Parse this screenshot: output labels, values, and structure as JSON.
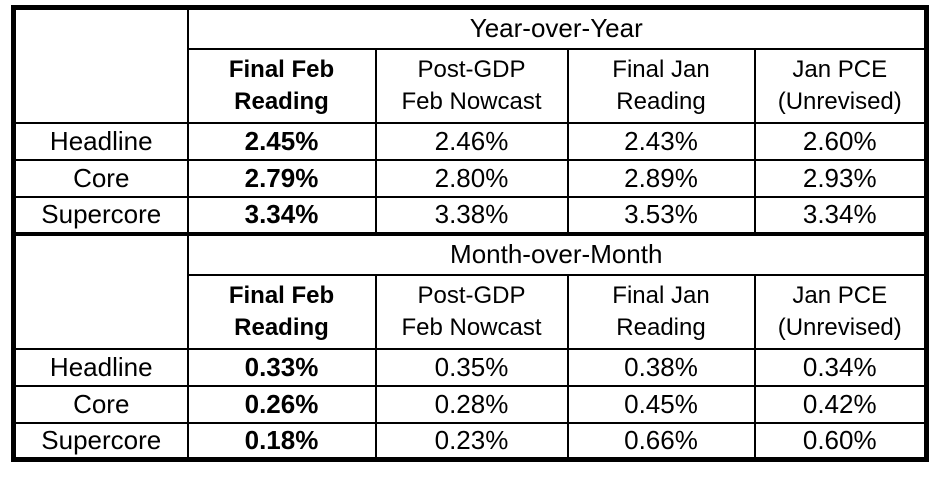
{
  "chart_data": {
    "type": "table",
    "row_dimension_labels": [
      "Headline",
      "Core",
      "Supercore"
    ],
    "sections": [
      {
        "title": "Year-over-Year",
        "columns": [
          {
            "line1": "Final Feb",
            "line2": "Reading",
            "bold": true
          },
          {
            "line1": "Post-GDP",
            "line2": "Feb Nowcast",
            "bold": false
          },
          {
            "line1": "Final Jan",
            "line2": "Reading",
            "bold": false
          },
          {
            "line1": "Jan PCE",
            "line2": "(Unrevised)",
            "bold": false
          }
        ],
        "rows": [
          {
            "label": "Headline",
            "values": [
              "2.45%",
              "2.46%",
              "2.43%",
              "2.60%"
            ]
          },
          {
            "label": "Core",
            "values": [
              "2.79%",
              "2.80%",
              "2.89%",
              "2.93%"
            ]
          },
          {
            "label": "Supercore",
            "values": [
              "3.34%",
              "3.38%",
              "3.53%",
              "3.34%"
            ]
          }
        ]
      },
      {
        "title": "Month-over-Month",
        "columns": [
          {
            "line1": "Final Feb",
            "line2": "Reading",
            "bold": true
          },
          {
            "line1": "Post-GDP",
            "line2": "Feb Nowcast",
            "bold": false
          },
          {
            "line1": "Final Jan",
            "line2": "Reading",
            "bold": false
          },
          {
            "line1": "Jan PCE",
            "line2": "(Unrevised)",
            "bold": false
          }
        ],
        "rows": [
          {
            "label": "Headline",
            "values": [
              "0.33%",
              "0.35%",
              "0.38%",
              "0.34%"
            ]
          },
          {
            "label": "Core",
            "values": [
              "0.26%",
              "0.28%",
              "0.45%",
              "0.42%"
            ]
          },
          {
            "label": "Supercore",
            "values": [
              "0.18%",
              "0.23%",
              "0.66%",
              "0.60%"
            ]
          }
        ]
      }
    ],
    "layout_hints": {
      "bold_value_column_index": 0,
      "grid": "on",
      "border_color": "#000000",
      "background": "#ffffff",
      "text_color": "#000000"
    }
  }
}
